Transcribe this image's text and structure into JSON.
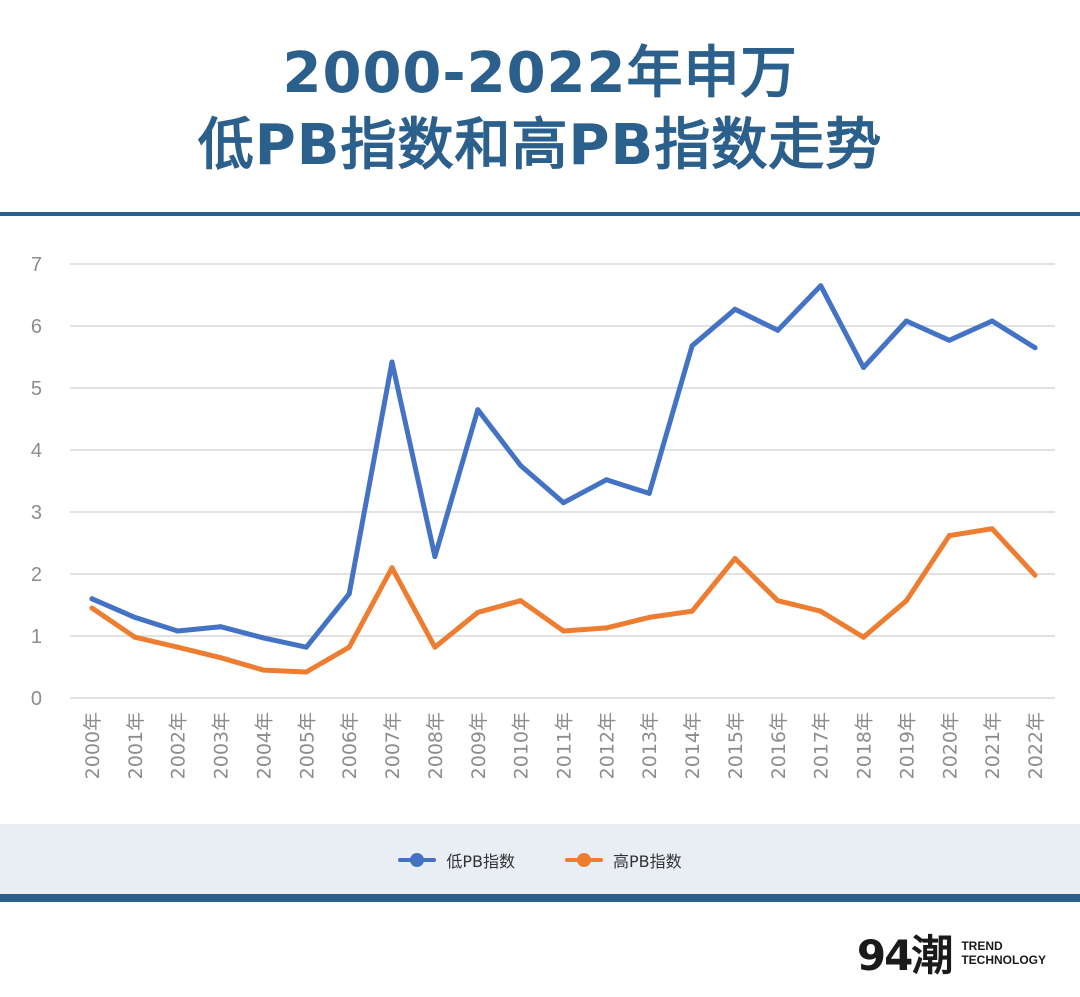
{
  "title": {
    "line1": "2000-2022年申万",
    "line2": "低PB指数和高PB指数走势"
  },
  "brand": {
    "mark": "94潮",
    "line1": "TREND",
    "line2": "TECHNOLOGY"
  },
  "colors": {
    "title": "#2b5f8c",
    "low_pb": "#4472c4",
    "high_pb": "#ed7d31",
    "grid": "#d9d9d9",
    "legend_band": "#e9eef5"
  },
  "chart_data": {
    "type": "line",
    "categories": [
      "2000年",
      "2001年",
      "2002年",
      "2003年",
      "2004年",
      "2005年",
      "2006年",
      "2007年",
      "2008年",
      "2009年",
      "2010年",
      "2011年",
      "2012年",
      "2013年",
      "2014年",
      "2015年",
      "2016年",
      "2017年",
      "2018年",
      "2019年",
      "2020年",
      "2021年",
      "2022年"
    ],
    "series": [
      {
        "name": "低PB指数",
        "color": "#4472c4",
        "values": [
          1.6,
          1.3,
          1.08,
          1.15,
          0.97,
          0.82,
          1.68,
          5.42,
          2.28,
          4.65,
          3.75,
          3.15,
          3.52,
          3.3,
          5.68,
          6.27,
          5.93,
          6.65,
          5.33,
          6.08,
          5.77,
          6.08,
          5.65
        ]
      },
      {
        "name": "高PB指数",
        "color": "#ed7d31",
        "values": [
          1.45,
          0.98,
          0.82,
          0.65,
          0.45,
          0.42,
          0.82,
          2.1,
          0.82,
          1.38,
          1.57,
          1.08,
          1.13,
          1.3,
          1.4,
          2.25,
          1.57,
          1.4,
          0.98,
          1.57,
          2.62,
          2.73,
          1.98
        ]
      }
    ],
    "yticks": [
      "0",
      "1",
      "2",
      "3",
      "4",
      "5",
      "6",
      "7"
    ],
    "ylim": [
      0,
      7
    ],
    "grid": true,
    "legend": "bottom-center"
  }
}
